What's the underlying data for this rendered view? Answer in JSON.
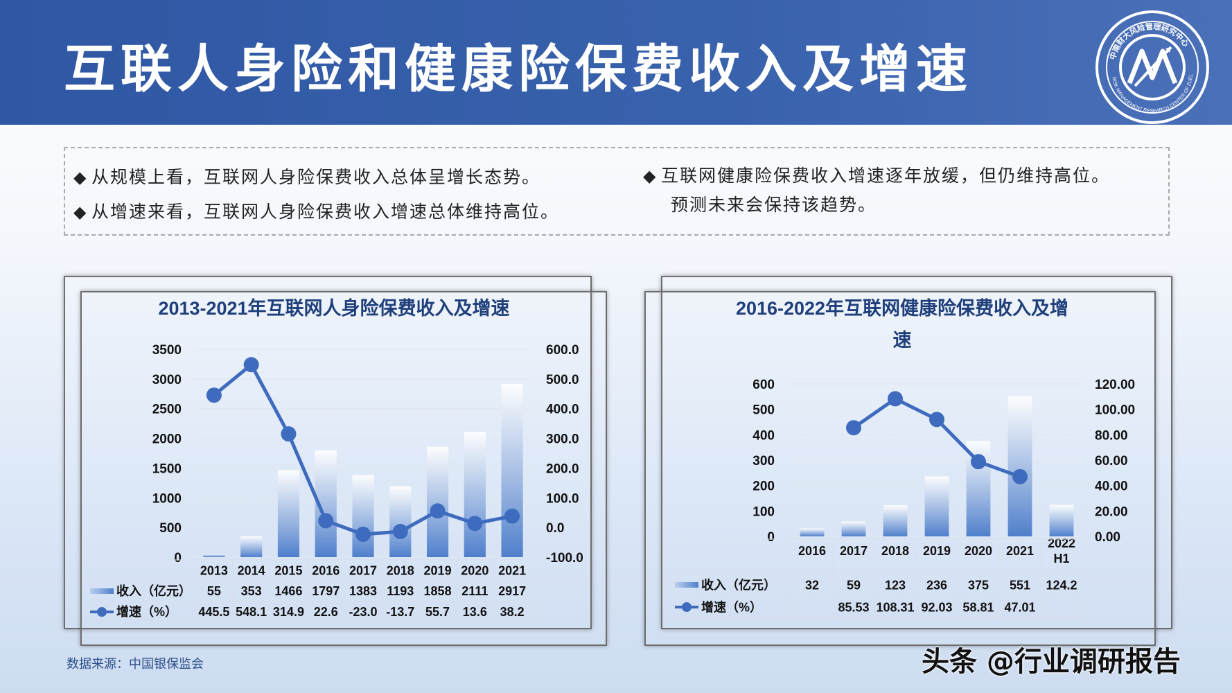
{
  "header": {
    "title": "互联人身险和健康险保费收入及增速"
  },
  "logo": {
    "icon": "research-center-logo",
    "text": "中南财大风险管理研究中心",
    "text_en": "RISK MANAGEMENT RESEARCH CENTER OF ZUEL"
  },
  "notes": {
    "bullet": "◆",
    "left": [
      "从规模上看，互联网人身险保费收入总体呈增长态势。",
      "从增速来看，互联网人身险保费收入增速总体维持高位。"
    ],
    "right": [
      "互联网健康险保费收入增速逐年放缓，但仍维持高位。",
      "预测未来会保持该趋势。"
    ]
  },
  "source": "数据来源：中国银保监会",
  "watermark": "头条 @行业调研报告",
  "chart_data": [
    {
      "type": "bar",
      "title": "2013-2021年互联网人身险保费收入及增速",
      "categories": [
        "2013",
        "2014",
        "2015",
        "2016",
        "2017",
        "2018",
        "2019",
        "2020",
        "2021"
      ],
      "series": [
        {
          "name": "收入（亿元）",
          "type": "bar",
          "axis": "left",
          "values": [
            55,
            353,
            1466,
            1797,
            1383,
            1193,
            1858,
            2111,
            2917
          ]
        },
        {
          "name": "增速（%）",
          "type": "line",
          "axis": "right",
          "values": [
            445.5,
            548.1,
            314.9,
            22.6,
            -23.0,
            -13.7,
            55.7,
            13.6,
            38.2
          ],
          "labels": [
            "445.5",
            "548.1",
            "314.9",
            "22.6",
            "-23.0",
            "-13.7",
            "55.7",
            "13.6",
            "38.2"
          ]
        }
      ],
      "y_left": {
        "min": 0,
        "max": 3500,
        "ticks": [
          "0",
          "500",
          "1000",
          "1500",
          "2000",
          "2500",
          "3000",
          "3500"
        ]
      },
      "y_right": {
        "min": -100,
        "max": 600,
        "ticks": [
          "-100.0",
          "0.0",
          "100.0",
          "200.0",
          "300.0",
          "400.0",
          "500.0",
          "600.0"
        ]
      },
      "colors": {
        "bar": "#4f7fcb",
        "line": "#3e6bbd",
        "title": "#1f3f7a"
      }
    },
    {
      "type": "bar",
      "title": "2016-2022年互联网健康险保费收入及增",
      "title_line2": "速",
      "categories": [
        "2016",
        "2017",
        "2018",
        "2019",
        "2020",
        "2021",
        "2022\nH1"
      ],
      "series": [
        {
          "name": "收入（亿元）",
          "type": "bar",
          "axis": "left",
          "values": [
            32,
            59,
            123,
            236,
            375,
            551,
            124.2
          ],
          "labels": [
            "32",
            "59",
            "123",
            "236",
            "375",
            "551",
            "124.2"
          ]
        },
        {
          "name": "增速（%）",
          "type": "line",
          "axis": "right",
          "values": [
            null,
            85.53,
            108.31,
            92.03,
            58.81,
            47.01,
            null
          ],
          "labels": [
            "",
            "85.53",
            "108.31",
            "92.03",
            "58.81",
            "47.01",
            ""
          ]
        }
      ],
      "y_left": {
        "min": 0,
        "max": 600,
        "ticks": [
          "0",
          "100",
          "200",
          "300",
          "400",
          "500",
          "600"
        ]
      },
      "y_right": {
        "min": 0,
        "max": 120,
        "ticks": [
          "0.00",
          "20.00",
          "40.00",
          "60.00",
          "80.00",
          "100.00",
          "120.00"
        ]
      },
      "colors": {
        "bar": "#4f7fcb",
        "line": "#3e6bbd",
        "title": "#1f3f7a"
      }
    }
  ]
}
